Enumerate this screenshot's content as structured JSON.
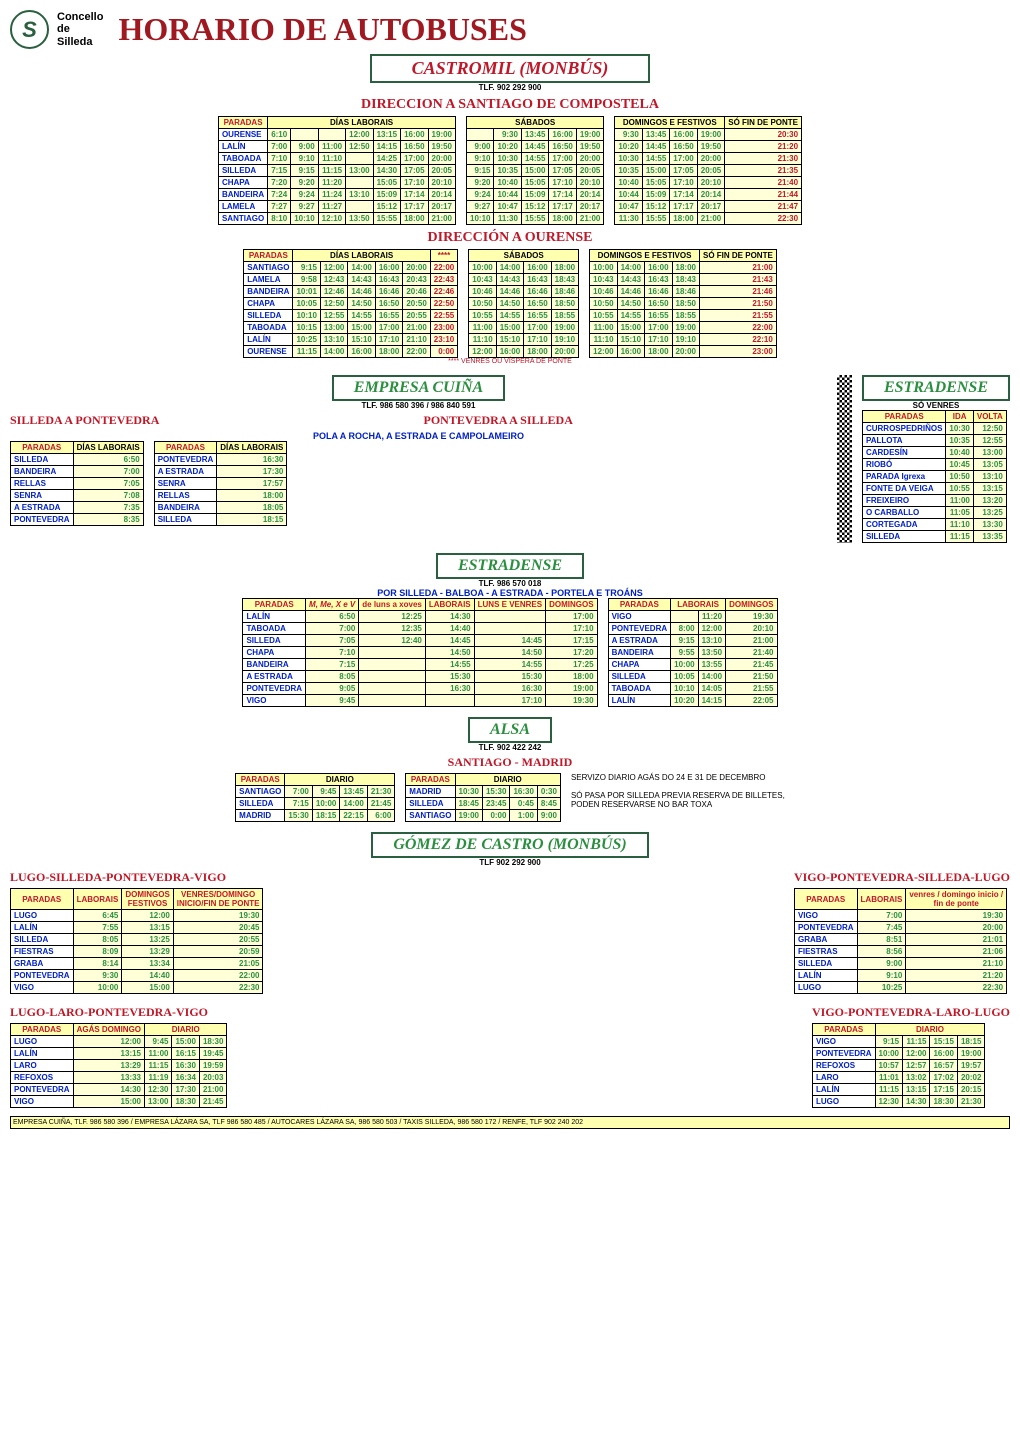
{
  "logo_text": "Concello\nde\nSilleda",
  "main_title": "HORARIO DE AUTOBUSES",
  "castromil": {
    "title": "CASTROMIL (MONBÚS)",
    "phone": "TLF. 902 292 900",
    "dir_santiago": {
      "title": "DIRECCION A SANTIAGO DE COMPOSTELA",
      "headers_lab": [
        "PARADAS",
        "DÍAS LABORAIS"
      ],
      "headers_sab": "SÁBADOS",
      "headers_dom": "DOMINGOS E FESTIVOS",
      "headers_fin": "SÓ FIN DE PONTE",
      "rows": [
        {
          "p": "OURENSE",
          "lab": [
            "6:10",
            "",
            "",
            "12:00",
            "13:15",
            "16:00",
            "19:00"
          ],
          "sab": [
            "",
            "9:30",
            "13:45",
            "16:00",
            "19:00"
          ],
          "dom": [
            "9:30",
            "13:45",
            "16:00",
            "19:00"
          ],
          "fin": "20:30"
        },
        {
          "p": "LALÍN",
          "lab": [
            "7:00",
            "9:00",
            "11:00",
            "12:50",
            "14:15",
            "16:50",
            "19:50"
          ],
          "sab": [
            "9:00",
            "10:20",
            "14:45",
            "16:50",
            "19:50"
          ],
          "dom": [
            "10:20",
            "14:45",
            "16:50",
            "19:50"
          ],
          "fin": "21:20"
        },
        {
          "p": "TABOADA",
          "lab": [
            "7:10",
            "9:10",
            "11:10",
            "",
            "14:25",
            "17:00",
            "20:00"
          ],
          "sab": [
            "9:10",
            "10:30",
            "14:55",
            "17:00",
            "20:00"
          ],
          "dom": [
            "10:30",
            "14:55",
            "17:00",
            "20:00"
          ],
          "fin": "21:30"
        },
        {
          "p": "SILLEDA",
          "lab": [
            "7:15",
            "9:15",
            "11:15",
            "13:00",
            "14:30",
            "17:05",
            "20:05"
          ],
          "sab": [
            "9:15",
            "10:35",
            "15:00",
            "17:05",
            "20:05"
          ],
          "dom": [
            "10:35",
            "15:00",
            "17:05",
            "20:05"
          ],
          "fin": "21:35"
        },
        {
          "p": "CHAPA",
          "lab": [
            "7:20",
            "9:20",
            "11:20",
            "",
            "15:05",
            "17:10",
            "20:10"
          ],
          "sab": [
            "9:20",
            "10:40",
            "15:05",
            "17:10",
            "20:10"
          ],
          "dom": [
            "10:40",
            "15:05",
            "17:10",
            "20:10"
          ],
          "fin": "21:40"
        },
        {
          "p": "BANDEIRA",
          "lab": [
            "7:24",
            "9:24",
            "11:24",
            "13:10",
            "15:09",
            "17:14",
            "20:14"
          ],
          "sab": [
            "9:24",
            "10:44",
            "15:09",
            "17:14",
            "20:14"
          ],
          "dom": [
            "10:44",
            "15:09",
            "17:14",
            "20:14"
          ],
          "fin": "21:44"
        },
        {
          "p": "LAMELA",
          "lab": [
            "7:27",
            "9:27",
            "11:27",
            "",
            "15:12",
            "17:17",
            "20:17"
          ],
          "sab": [
            "9:27",
            "10:47",
            "15:12",
            "17:17",
            "20:17"
          ],
          "dom": [
            "10:47",
            "15:12",
            "17:17",
            "20:17"
          ],
          "fin": "21:47"
        },
        {
          "p": "SANTIAGO",
          "lab": [
            "8:10",
            "10:10",
            "12:10",
            "13:50",
            "15:55",
            "18:00",
            "21:00"
          ],
          "sab": [
            "10:10",
            "11:30",
            "15:55",
            "18:00",
            "21:00"
          ],
          "dom": [
            "11:30",
            "15:55",
            "18:00",
            "21:00"
          ],
          "fin": "22:30"
        }
      ]
    },
    "dir_ourense": {
      "title": "DIRECCIÓN A OURENSE",
      "venres_note": "**** VENRES OU VÍSPERA DE PONTE",
      "rows": [
        {
          "p": "SANTIAGO",
          "lab": [
            "9:15",
            "12:00",
            "14:00",
            "16:00",
            "20:00"
          ],
          "v": "22:00",
          "sab": [
            "10:00",
            "14:00",
            "16:00",
            "18:00"
          ],
          "dom": [
            "10:00",
            "14:00",
            "16:00",
            "18:00"
          ],
          "fin": "21:00"
        },
        {
          "p": "LAMELA",
          "lab": [
            "9:58",
            "12:43",
            "14:43",
            "16:43",
            "20:43"
          ],
          "v": "22:43",
          "sab": [
            "10:43",
            "14:43",
            "16:43",
            "18:43"
          ],
          "dom": [
            "10:43",
            "14:43",
            "16:43",
            "18:43"
          ],
          "fin": "21:43"
        },
        {
          "p": "BANDEIRA",
          "lab": [
            "10:01",
            "12:46",
            "14:46",
            "16:46",
            "20:46"
          ],
          "v": "22:46",
          "sab": [
            "10:46",
            "14:46",
            "16:46",
            "18:46"
          ],
          "dom": [
            "10:46",
            "14:46",
            "16:46",
            "18:46"
          ],
          "fin": "21:46"
        },
        {
          "p": "CHAPA",
          "lab": [
            "10:05",
            "12:50",
            "14:50",
            "16:50",
            "20:50"
          ],
          "v": "22:50",
          "sab": [
            "10:50",
            "14:50",
            "16:50",
            "18:50"
          ],
          "dom": [
            "10:50",
            "14:50",
            "16:50",
            "18:50"
          ],
          "fin": "21:50"
        },
        {
          "p": "SILLEDA",
          "lab": [
            "10:10",
            "12:55",
            "14:55",
            "16:55",
            "20:55"
          ],
          "v": "22:55",
          "sab": [
            "10:55",
            "14:55",
            "16:55",
            "18:55"
          ],
          "dom": [
            "10:55",
            "14:55",
            "16:55",
            "18:55"
          ],
          "fin": "21:55"
        },
        {
          "p": "TABOADA",
          "lab": [
            "10:15",
            "13:00",
            "15:00",
            "17:00",
            "21:00"
          ],
          "v": "23:00",
          "sab": [
            "11:00",
            "15:00",
            "17:00",
            "19:00"
          ],
          "dom": [
            "11:00",
            "15:00",
            "17:00",
            "19:00"
          ],
          "fin": "22:00"
        },
        {
          "p": "LALÍN",
          "lab": [
            "10:25",
            "13:10",
            "15:10",
            "17:10",
            "21:10"
          ],
          "v": "23:10",
          "sab": [
            "11:10",
            "15:10",
            "17:10",
            "19:10"
          ],
          "dom": [
            "11:10",
            "15:10",
            "17:10",
            "19:10"
          ],
          "fin": "22:10"
        },
        {
          "p": "OURENSE",
          "lab": [
            "11:15",
            "14:00",
            "16:00",
            "18:00",
            "22:00"
          ],
          "v": "0:00",
          "sab": [
            "12:00",
            "16:00",
            "18:00",
            "20:00"
          ],
          "dom": [
            "12:00",
            "16:00",
            "18:00",
            "20:00"
          ],
          "fin": "23:00"
        }
      ]
    }
  },
  "cuina": {
    "title": "EMPRESA CUIÑA",
    "phone": "TLF. 986 580 396 / 986 840 591",
    "left_title": "SILLEDA A PONTEVEDRA",
    "right_title": "PONTEVEDRA A SILLEDA",
    "sub": "POLA A ROCHA, A ESTRADA E CAMPOLAMEIRO",
    "left_rows": [
      {
        "p": "SILLEDA",
        "t": "6:50"
      },
      {
        "p": "BANDEIRA",
        "t": "7:00"
      },
      {
        "p": "RELLAS",
        "t": "7:05"
      },
      {
        "p": "SENRA",
        "t": "7:08"
      },
      {
        "p": "A ESTRADA",
        "t": "7:35"
      },
      {
        "p": "PONTEVEDRA",
        "t": "8:35"
      }
    ],
    "right_rows": [
      {
        "p": "PONTEVEDRA",
        "t": "16:30"
      },
      {
        "p": "A ESTRADA",
        "t": "17:30"
      },
      {
        "p": "SENRA",
        "t": "17:57"
      },
      {
        "p": "RELLAS",
        "t": "18:00"
      },
      {
        "p": "BANDEIRA",
        "t": "18:05"
      },
      {
        "p": "SILLEDA",
        "t": "18:15"
      }
    ]
  },
  "estradense_venres": {
    "title": "ESTRADENSE",
    "sub": "SÓ VENRES",
    "rows": [
      {
        "p": "CURROSPEDRIÑOS",
        "i": "10:30",
        "v": "12:50"
      },
      {
        "p": "PALLOTA",
        "i": "10:35",
        "v": "12:55"
      },
      {
        "p": "CARDESÍN",
        "i": "10:40",
        "v": "13:00"
      },
      {
        "p": "RIOBÓ",
        "i": "10:45",
        "v": "13:05"
      },
      {
        "p": "PARADA Igrexa",
        "i": "10:50",
        "v": "13:10"
      },
      {
        "p": "FONTE DA VEIGA",
        "i": "10:55",
        "v": "13:15"
      },
      {
        "p": "FREIXEIRO",
        "i": "11:00",
        "v": "13:20"
      },
      {
        "p": "O CARBALLO",
        "i": "11:05",
        "v": "13:25"
      },
      {
        "p": "CORTEGADA",
        "i": "11:10",
        "v": "13:30"
      },
      {
        "p": "SILLEDA",
        "i": "11:15",
        "v": "13:35"
      }
    ]
  },
  "estradense2": {
    "title": "ESTRADENSE",
    "phone": "TLF. 986 570 018",
    "sub": "POR SILLEDA - BALBOA - A ESTRADA - PORTELA E TROÁNS",
    "left_rows": [
      {
        "p": "LALÍN",
        "m": "6:50",
        "x": "12:25",
        "l": "14:30",
        "lv": "",
        "d": "17:00"
      },
      {
        "p": "TABOADA",
        "m": "7:00",
        "x": "12:35",
        "l": "14:40",
        "lv": "",
        "d": "17:10"
      },
      {
        "p": "SILLEDA",
        "m": "7:05",
        "x": "12:40",
        "l": "14:45",
        "lv": "14:45",
        "d": "17:15"
      },
      {
        "p": "CHAPA",
        "m": "7:10",
        "x": "",
        "l": "14:50",
        "lv": "14:50",
        "d": "17:20"
      },
      {
        "p": "BANDEIRA",
        "m": "7:15",
        "x": "",
        "l": "14:55",
        "lv": "14:55",
        "d": "17:25"
      },
      {
        "p": "A ESTRADA",
        "m": "8:05",
        "x": "",
        "l": "15:30",
        "lv": "15:30",
        "d": "18:00"
      },
      {
        "p": "PONTEVEDRA",
        "m": "9:05",
        "x": "",
        "l": "16:30",
        "lv": "16:30",
        "d": "19:00"
      },
      {
        "p": "VIGO",
        "m": "9:45",
        "x": "",
        "l": "",
        "lv": "17:10",
        "d": "19:30"
      }
    ],
    "right_rows": [
      {
        "p": "VIGO",
        "l1": "",
        "l2": "11:20",
        "d": "19:30"
      },
      {
        "p": "PONTEVEDRA",
        "l1": "8:00",
        "l2": "12:00",
        "d": "20:10"
      },
      {
        "p": "A ESTRADA",
        "l1": "9:15",
        "l2": "13:10",
        "d": "21:00"
      },
      {
        "p": "BANDEIRA",
        "l1": "9:55",
        "l2": "13:50",
        "d": "21:40"
      },
      {
        "p": "CHAPA",
        "l1": "10:00",
        "l2": "13:55",
        "d": "21:45"
      },
      {
        "p": "SILLEDA",
        "l1": "10:05",
        "l2": "14:00",
        "d": "21:50"
      },
      {
        "p": "TABOADA",
        "l1": "10:10",
        "l2": "14:05",
        "d": "21:55"
      },
      {
        "p": "LALÍN",
        "l1": "10:20",
        "l2": "14:15",
        "d": "22:05"
      }
    ]
  },
  "alsa": {
    "title": "ALSA",
    "phone": "TLF. 902 422 242",
    "sub": "SANTIAGO - MADRID",
    "left_rows": [
      {
        "p": "SANTIAGO",
        "t": [
          "7:00",
          "9:45",
          "13:45",
          "21:30"
        ]
      },
      {
        "p": "SILLEDA",
        "t": [
          "7:15",
          "10:00",
          "14:00",
          "21:45"
        ]
      },
      {
        "p": "MADRID",
        "t": [
          "15:30",
          "18:15",
          "22:15",
          "6:00"
        ]
      }
    ],
    "right_rows": [
      {
        "p": "MADRID",
        "t": [
          "10:30",
          "15:30",
          "16:30",
          "0:30"
        ]
      },
      {
        "p": "SILLEDA",
        "t": [
          "18:45",
          "23:45",
          "0:45",
          "8:45"
        ]
      },
      {
        "p": "SANTIAGO",
        "t": [
          "19:00",
          "0:00",
          "1:00",
          "9:00"
        ]
      }
    ],
    "info1": "SERVIZO DIARIO AGÁS DO 24 E 31 DE DECEMBRO",
    "info2": "SÓ PASA POR SILLEDA PREVIA RESERVA DE BILLETES,",
    "info3": "PODEN RESERVARSE NO BAR TOXA"
  },
  "gomez": {
    "title": "GÓMEZ DE CASTRO (MONBÚS)",
    "phone": "TLF 902 292 900",
    "t1": {
      "title": "LUGO-SILLEDA-PONTEVEDRA-VIGO",
      "rows": [
        {
          "p": "LUGO",
          "l": "6:45",
          "d": "12:00",
          "v": "19:30"
        },
        {
          "p": "LALÍN",
          "l": "7:55",
          "d": "13:15",
          "v": "20:45"
        },
        {
          "p": "SILLEDA",
          "l": "8:05",
          "d": "13:25",
          "v": "20:55"
        },
        {
          "p": "FIESTRAS",
          "l": "8:09",
          "d": "13:29",
          "v": "20:59"
        },
        {
          "p": "GRABA",
          "l": "8:14",
          "d": "13:34",
          "v": "21:05"
        },
        {
          "p": "PONTEVEDRA",
          "l": "9:30",
          "d": "14:40",
          "v": "22:00"
        },
        {
          "p": "VIGO",
          "l": "10:00",
          "d": "15:00",
          "v": "22:30"
        }
      ]
    },
    "t2": {
      "title": "VIGO-PONTEVEDRA-SILLEDA-LUGO",
      "rows": [
        {
          "p": "VIGO",
          "l": "7:00",
          "v": "19:30"
        },
        {
          "p": "PONTEVEDRA",
          "l": "7:45",
          "v": "20:00"
        },
        {
          "p": "GRABA",
          "l": "8:51",
          "v": "21:01"
        },
        {
          "p": "FIESTRAS",
          "l": "8:56",
          "v": "21:06"
        },
        {
          "p": "SILLEDA",
          "l": "9:00",
          "v": "21:10"
        },
        {
          "p": "LALÍN",
          "l": "9:10",
          "v": "21:20"
        },
        {
          "p": "LUGO",
          "l": "10:25",
          "v": "22:30"
        }
      ]
    },
    "t3": {
      "title": "LUGO-LARO-PONTEVEDRA-VIGO",
      "rows": [
        {
          "p": "LUGO",
          "a": "12:00",
          "d": [
            "9:45",
            "15:00",
            "18:30"
          ]
        },
        {
          "p": "LALÍN",
          "a": "13:15",
          "d": [
            "11:00",
            "16:15",
            "19:45"
          ]
        },
        {
          "p": "LARO",
          "a": "13:29",
          "d": [
            "11:15",
            "16:30",
            "19:59"
          ]
        },
        {
          "p": "REFOXOS",
          "a": "13:33",
          "d": [
            "11:19",
            "16:34",
            "20:03"
          ]
        },
        {
          "p": "PONTEVEDRA",
          "a": "14:30",
          "d": [
            "12:30",
            "17:30",
            "21:00"
          ]
        },
        {
          "p": "VIGO",
          "a": "15:00",
          "d": [
            "13:00",
            "18:30",
            "21:45"
          ]
        }
      ]
    },
    "t4": {
      "title": "VIGO-PONTEVEDRA-LARO-LUGO",
      "rows": [
        {
          "p": "VIGO",
          "d": [
            "9:15",
            "11:15",
            "15:15",
            "18:15"
          ]
        },
        {
          "p": "PONTEVEDRA",
          "d": [
            "10:00",
            "12:00",
            "16:00",
            "19:00"
          ]
        },
        {
          "p": "REFOXOS",
          "d": [
            "10:57",
            "12:57",
            "16:57",
            "19:57"
          ]
        },
        {
          "p": "LARO",
          "d": [
            "11:01",
            "13:02",
            "17:02",
            "20:02"
          ]
        },
        {
          "p": "LALÍN",
          "d": [
            "11:15",
            "13:15",
            "17:15",
            "20:15"
          ]
        },
        {
          "p": "LUGO",
          "d": [
            "12:30",
            "14:30",
            "18:30",
            "21:30"
          ]
        }
      ]
    }
  },
  "footer": "EMPRESA CUIÑA, TLF. 986 580 396  /  EMPRESA LÁZARA SA, TLF 986 580 485 /  AUTOCARES LÁZARA SA, 986 580 503 /  TAXIS SILLEDA, 986 580 172 /  RENFE, TLF 902 240 202"
}
